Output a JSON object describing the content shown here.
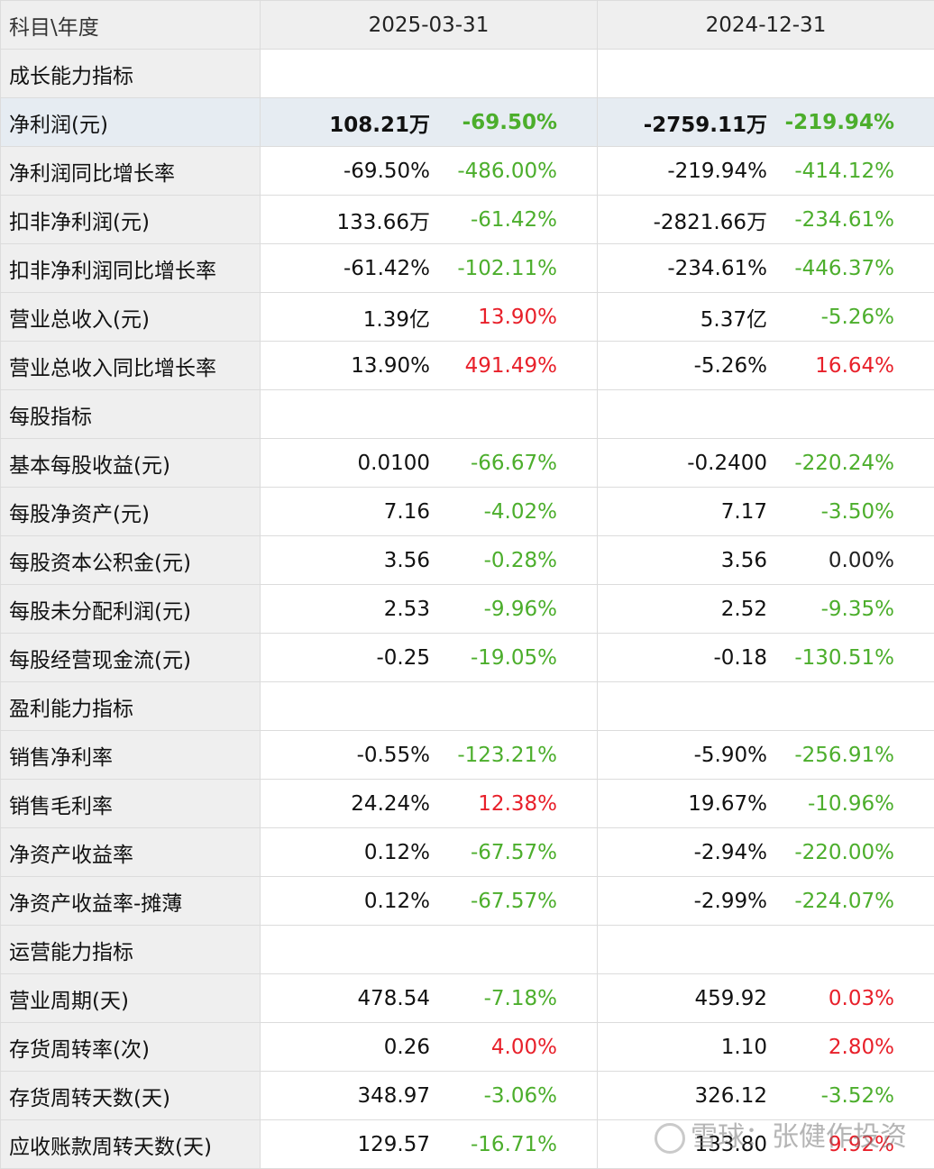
{
  "header": {
    "label": "科目\\年度",
    "years": [
      "2025-03-31",
      "2024-12-31"
    ]
  },
  "rows": [
    {
      "type": "section",
      "label": "成长能力指标"
    },
    {
      "type": "data",
      "label": "净利润(元)",
      "highlight": true,
      "cells": [
        {
          "value": "108.21万",
          "pct": "-69.50%",
          "trend": "neg"
        },
        {
          "value": "-2759.11万",
          "pct": "-219.94%",
          "trend": "neg"
        }
      ]
    },
    {
      "type": "data",
      "label": "净利润同比增长率",
      "cells": [
        {
          "value": "-69.50%",
          "pct": "-486.00%",
          "trend": "neg"
        },
        {
          "value": "-219.94%",
          "pct": "-414.12%",
          "trend": "neg"
        }
      ]
    },
    {
      "type": "data",
      "label": "扣非净利润(元)",
      "cells": [
        {
          "value": "133.66万",
          "pct": "-61.42%",
          "trend": "neg"
        },
        {
          "value": "-2821.66万",
          "pct": "-234.61%",
          "trend": "neg"
        }
      ]
    },
    {
      "type": "data",
      "label": "扣非净利润同比增长率",
      "cells": [
        {
          "value": "-61.42%",
          "pct": "-102.11%",
          "trend": "neg"
        },
        {
          "value": "-234.61%",
          "pct": "-446.37%",
          "trend": "neg"
        }
      ]
    },
    {
      "type": "data",
      "label": "营业总收入(元)",
      "cells": [
        {
          "value": "1.39亿",
          "pct": "13.90%",
          "trend": "pos"
        },
        {
          "value": "5.37亿",
          "pct": "-5.26%",
          "trend": "neg"
        }
      ]
    },
    {
      "type": "data",
      "label": "营业总收入同比增长率",
      "cells": [
        {
          "value": "13.90%",
          "pct": "491.49%",
          "trend": "pos"
        },
        {
          "value": "-5.26%",
          "pct": "16.64%",
          "trend": "pos"
        }
      ]
    },
    {
      "type": "section",
      "label": "每股指标"
    },
    {
      "type": "data",
      "label": "基本每股收益(元)",
      "cells": [
        {
          "value": "0.0100",
          "pct": "-66.67%",
          "trend": "neg"
        },
        {
          "value": "-0.2400",
          "pct": "-220.24%",
          "trend": "neg"
        }
      ]
    },
    {
      "type": "data",
      "label": "每股净资产(元)",
      "cells": [
        {
          "value": "7.16",
          "pct": "-4.02%",
          "trend": "neg"
        },
        {
          "value": "7.17",
          "pct": "-3.50%",
          "trend": "neg"
        }
      ]
    },
    {
      "type": "data",
      "label": "每股资本公积金(元)",
      "cells": [
        {
          "value": "3.56",
          "pct": "-0.28%",
          "trend": "neg"
        },
        {
          "value": "3.56",
          "pct": "0.00%",
          "trend": "zero"
        }
      ]
    },
    {
      "type": "data",
      "label": "每股未分配利润(元)",
      "cells": [
        {
          "value": "2.53",
          "pct": "-9.96%",
          "trend": "neg"
        },
        {
          "value": "2.52",
          "pct": "-9.35%",
          "trend": "neg"
        }
      ]
    },
    {
      "type": "data",
      "label": "每股经营现金流(元)",
      "cells": [
        {
          "value": "-0.25",
          "pct": "-19.05%",
          "trend": "neg"
        },
        {
          "value": "-0.18",
          "pct": "-130.51%",
          "trend": "neg"
        }
      ]
    },
    {
      "type": "section",
      "label": "盈利能力指标"
    },
    {
      "type": "data",
      "label": "销售净利率",
      "cells": [
        {
          "value": "-0.55%",
          "pct": "-123.21%",
          "trend": "neg"
        },
        {
          "value": "-5.90%",
          "pct": "-256.91%",
          "trend": "neg"
        }
      ]
    },
    {
      "type": "data",
      "label": "销售毛利率",
      "cells": [
        {
          "value": "24.24%",
          "pct": "12.38%",
          "trend": "pos"
        },
        {
          "value": "19.67%",
          "pct": "-10.96%",
          "trend": "neg"
        }
      ]
    },
    {
      "type": "data",
      "label": "净资产收益率",
      "cells": [
        {
          "value": "0.12%",
          "pct": "-67.57%",
          "trend": "neg"
        },
        {
          "value": "-2.94%",
          "pct": "-220.00%",
          "trend": "neg"
        }
      ]
    },
    {
      "type": "data",
      "label": "净资产收益率-摊薄",
      "cells": [
        {
          "value": "0.12%",
          "pct": "-67.57%",
          "trend": "neg"
        },
        {
          "value": "-2.99%",
          "pct": "-224.07%",
          "trend": "neg"
        }
      ]
    },
    {
      "type": "section",
      "label": "运营能力指标"
    },
    {
      "type": "data",
      "label": "营业周期(天)",
      "cells": [
        {
          "value": "478.54",
          "pct": "-7.18%",
          "trend": "neg"
        },
        {
          "value": "459.92",
          "pct": "0.03%",
          "trend": "pos"
        }
      ]
    },
    {
      "type": "data",
      "label": "存货周转率(次)",
      "cells": [
        {
          "value": "0.26",
          "pct": "4.00%",
          "trend": "pos"
        },
        {
          "value": "1.10",
          "pct": "2.80%",
          "trend": "pos"
        }
      ]
    },
    {
      "type": "data",
      "label": "存货周转天数(天)",
      "cells": [
        {
          "value": "348.97",
          "pct": "-3.06%",
          "trend": "neg"
        },
        {
          "value": "326.12",
          "pct": "-3.52%",
          "trend": "neg"
        }
      ]
    },
    {
      "type": "data",
      "label": "应收账款周转天数(天)",
      "cells": [
        {
          "value": "129.57",
          "pct": "-16.71%",
          "trend": "neg"
        },
        {
          "value": "133.80",
          "pct": "9.92%",
          "trend": "pos"
        }
      ]
    }
  ],
  "watermark": {
    "text": "雪球：张健作投资",
    "icon": "snowball-logo-icon"
  },
  "colors": {
    "negative": "#4cae2c",
    "positive": "#e8202a",
    "highlight_row": "#e6ecf2",
    "label_bg": "#efefef"
  }
}
